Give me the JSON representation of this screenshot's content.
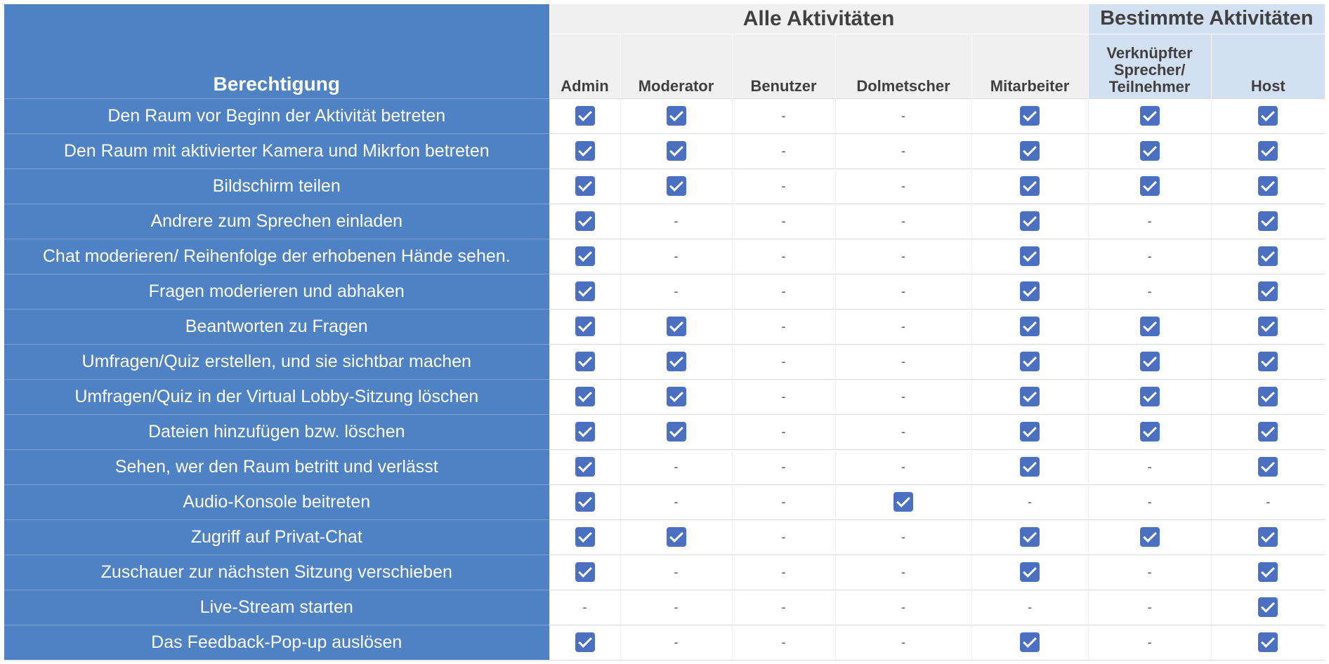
{
  "header": {
    "permission_col": "Berechtigung",
    "group_all": "Alle Aktivitäten",
    "group_specific": "Bestimmte Aktivitäten",
    "roles": [
      "Admin",
      "Moderator",
      "Benutzer",
      "Dolmetscher",
      "Mitarbeiter",
      "Verknüpfter Sprecher/ Teilnehmer",
      "Host"
    ]
  },
  "dash": "-",
  "rows": [
    {
      "label": "Den Raum vor Beginn der Aktivität betreten",
      "perms": [
        true,
        true,
        false,
        false,
        true,
        true,
        true
      ]
    },
    {
      "label": "Den Raum mit aktivierter Kamera und Mikrfon betreten",
      "perms": [
        true,
        true,
        false,
        false,
        true,
        true,
        true
      ]
    },
    {
      "label": "Bildschirm teilen",
      "perms": [
        true,
        true,
        false,
        false,
        true,
        true,
        true
      ]
    },
    {
      "label": "Andrere zum Sprechen einladen",
      "perms": [
        true,
        false,
        false,
        false,
        true,
        false,
        true
      ]
    },
    {
      "label": "Chat moderieren/ Reihenfolge der erhobenen Hände sehen.",
      "perms": [
        true,
        false,
        false,
        false,
        true,
        false,
        true
      ]
    },
    {
      "label": "Fragen moderieren und abhaken",
      "perms": [
        true,
        false,
        false,
        false,
        true,
        false,
        true
      ]
    },
    {
      "label": "Beantworten zu Fragen",
      "perms": [
        true,
        true,
        false,
        false,
        true,
        true,
        true
      ]
    },
    {
      "label": "Umfragen/Quiz erstellen, und sie sichtbar machen",
      "perms": [
        true,
        true,
        false,
        false,
        true,
        true,
        true
      ]
    },
    {
      "label": "Umfragen/Quiz in der Virtual Lobby-Sitzung löschen",
      "perms": [
        true,
        true,
        false,
        false,
        true,
        true,
        true
      ]
    },
    {
      "label": "Dateien hinzufügen bzw. löschen",
      "perms": [
        true,
        true,
        false,
        false,
        true,
        true,
        true
      ]
    },
    {
      "label": "Sehen, wer den Raum betritt und verlässt",
      "perms": [
        true,
        false,
        false,
        false,
        true,
        false,
        true
      ]
    },
    {
      "label": "Audio-Konsole beitreten",
      "perms": [
        true,
        false,
        false,
        true,
        false,
        false,
        false
      ]
    },
    {
      "label": "Zugriff auf Privat-Chat",
      "perms": [
        true,
        true,
        false,
        false,
        true,
        true,
        true
      ]
    },
    {
      "label": "Zuschauer zur nächsten Sitzung verschieben",
      "perms": [
        true,
        false,
        false,
        false,
        true,
        false,
        true
      ]
    },
    {
      "label": "Live-Stream starten",
      "perms": [
        false,
        false,
        false,
        false,
        false,
        false,
        true
      ]
    },
    {
      "label": "Das Feedback-Pop-up auslösen",
      "perms": [
        true,
        false,
        false,
        false,
        true,
        false,
        true
      ]
    }
  ],
  "colors": {
    "label_bg": "#4f82c4",
    "check": "#4b70c2",
    "header_all": "#f0f0f0",
    "header_specific": "#d2e0f2"
  },
  "icons": {
    "granted": "checked-checkbox-icon",
    "denied": "dash"
  }
}
